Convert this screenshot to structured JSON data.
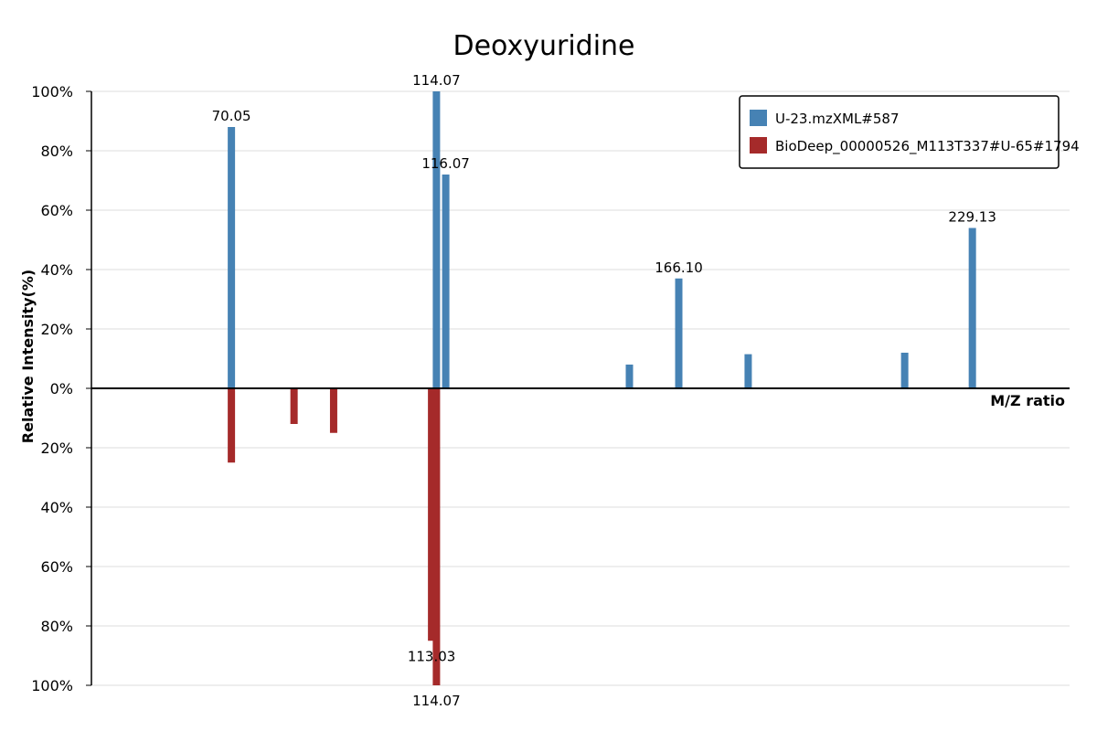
{
  "chart_data": {
    "type": "bar",
    "title": "Deoxyuridine",
    "xlabel": "M/Z ratio",
    "ylabel": "Relative Intensity(%)",
    "xlim": [
      40,
      250
    ],
    "ylim": [
      -100,
      100
    ],
    "y_ticks": [
      {
        "value": 100,
        "label": "100%"
      },
      {
        "value": 80,
        "label": "80%"
      },
      {
        "value": 60,
        "label": "60%"
      },
      {
        "value": 40,
        "label": "40%"
      },
      {
        "value": 20,
        "label": "20%"
      },
      {
        "value": 0,
        "label": "0%"
      },
      {
        "value": -20,
        "label": "20%"
      },
      {
        "value": -40,
        "label": "40%"
      },
      {
        "value": -60,
        "label": "60%"
      },
      {
        "value": -80,
        "label": "80%"
      },
      {
        "value": -100,
        "label": "100%"
      }
    ],
    "grid": true,
    "legend_position": "top-right",
    "series": [
      {
        "name": "U-23.mzXML#587",
        "color": "#4682b4",
        "points": [
          {
            "mz": 70.05,
            "intensity": 88,
            "label": "70.05"
          },
          {
            "mz": 114.07,
            "intensity": 100,
            "label": "114.07"
          },
          {
            "mz": 116.07,
            "intensity": 72,
            "label": "116.07"
          },
          {
            "mz": 155.5,
            "intensity": 8,
            "label": ""
          },
          {
            "mz": 166.1,
            "intensity": 37,
            "label": "166.10"
          },
          {
            "mz": 181.0,
            "intensity": 11.5,
            "label": ""
          },
          {
            "mz": 214.6,
            "intensity": 12,
            "label": ""
          },
          {
            "mz": 229.13,
            "intensity": 54,
            "label": "229.13"
          }
        ]
      },
      {
        "name": "BioDeep_00000526_M113T337#U-65#1794",
        "color": "#a52a2a",
        "points": [
          {
            "mz": 70.05,
            "intensity": 25,
            "label": ""
          },
          {
            "mz": 83.5,
            "intensity": 12,
            "label": ""
          },
          {
            "mz": 92.0,
            "intensity": 15,
            "label": ""
          },
          {
            "mz": 113.03,
            "intensity": 85,
            "label": "113.03"
          },
          {
            "mz": 114.07,
            "intensity": 100,
            "label": "114.07"
          }
        ]
      }
    ]
  }
}
